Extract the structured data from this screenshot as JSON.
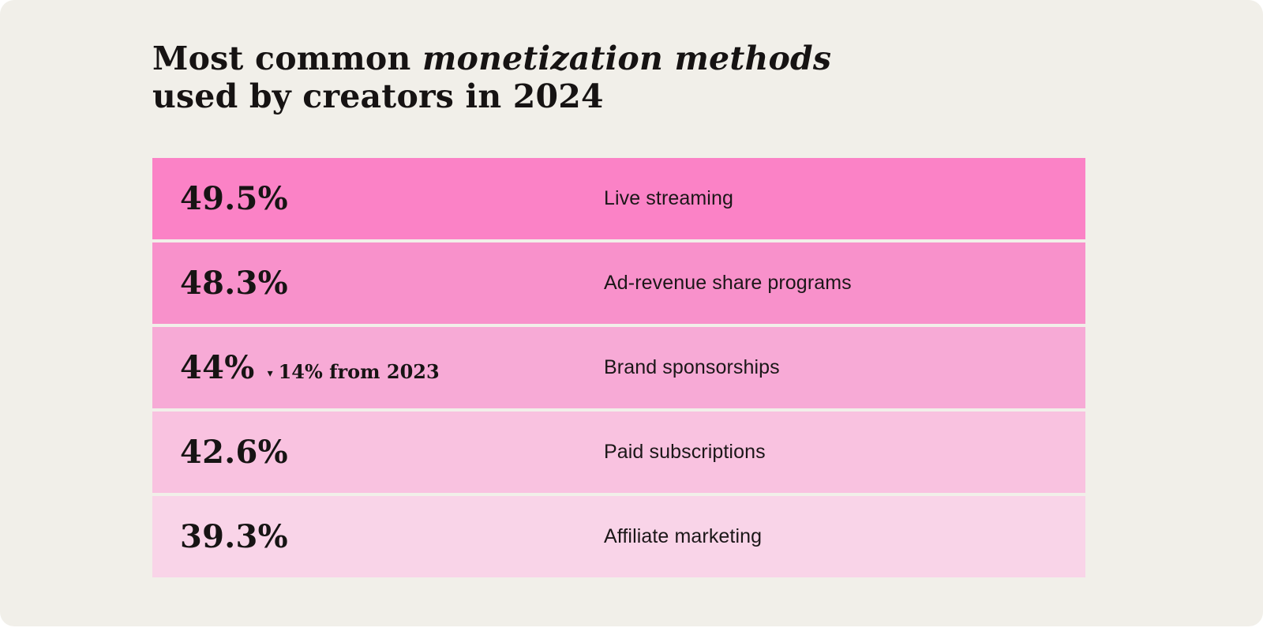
{
  "title": {
    "line1_regular": "Most common ",
    "line1_italic": "monetization methods",
    "line2": "used by creators in 2024"
  },
  "colors": {
    "background": "#f1efe9",
    "text": "#171414",
    "row_colors": [
      "#fb82c6",
      "#f891cb",
      "#f7aad6",
      "#f9c2e0",
      "#f9d4e8"
    ]
  },
  "chart_data": {
    "type": "bar",
    "title": "Most common monetization methods used by creators in 2024",
    "categories": [
      "Live streaming",
      "Ad-revenue share programs",
      "Brand sponsorships",
      "Paid subscriptions",
      "Affiliate marketing"
    ],
    "values": [
      49.5,
      48.3,
      44,
      42.6,
      39.3
    ],
    "legend": false,
    "grid": false,
    "annotations": [
      "Brand sponsorships: down 14% from 2023"
    ],
    "rows": [
      {
        "value": "49.5%",
        "label": "Live streaming",
        "color": "#fb82c6"
      },
      {
        "value": "48.3%",
        "label": "Ad-revenue share programs",
        "color": "#f891cb"
      },
      {
        "value": "44%",
        "change_icon": "▾",
        "change": "14% from 2023",
        "change_direction": "down",
        "label": "Brand sponsorships",
        "color": "#f7aad6"
      },
      {
        "value": "42.6%",
        "label": "Paid subscriptions",
        "color": "#f9c2e0"
      },
      {
        "value": "39.3%",
        "label": "Affiliate marketing",
        "color": "#f9d4e8"
      }
    ]
  }
}
